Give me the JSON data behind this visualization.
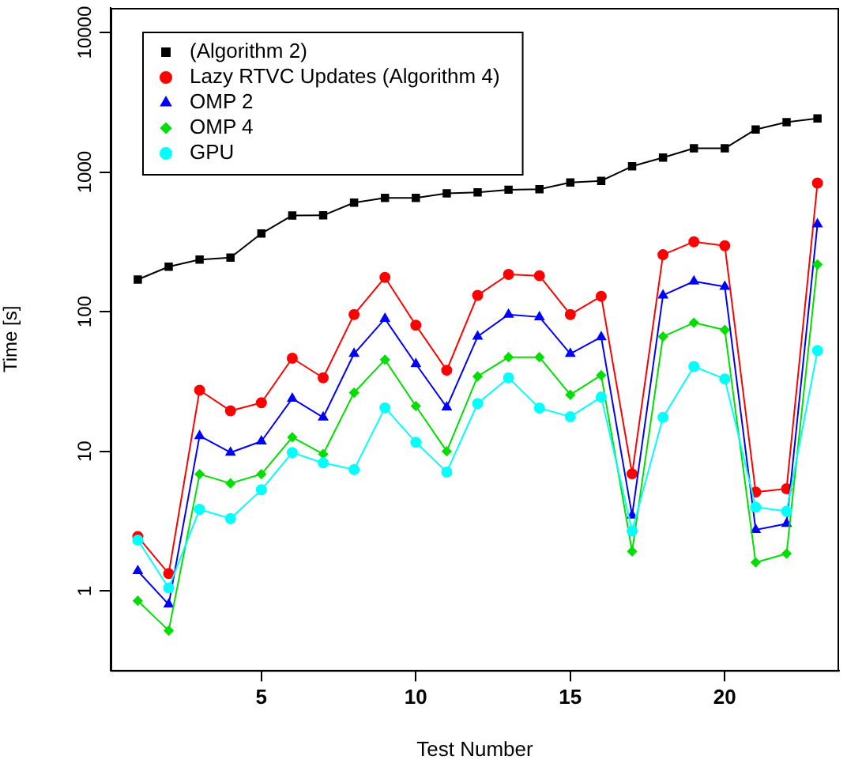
{
  "chart_data": {
    "type": "line",
    "xlabel": "Test Number",
    "ylabel": "Time [s]",
    "log": "y",
    "grid": false,
    "legend": "top left",
    "x": [
      1,
      2,
      3,
      4,
      5,
      6,
      7,
      8,
      9,
      10,
      11,
      12,
      13,
      14,
      15,
      16,
      17,
      18,
      19,
      20,
      21,
      22,
      23
    ],
    "xlim": [
      0.12,
      23.7
    ],
    "xticks": [
      5,
      10,
      15,
      20
    ],
    "ylim": [
      0.27,
      15000
    ],
    "yticks": [
      1,
      10,
      100,
      1000,
      10000
    ],
    "series": [
      {
        "name": "(Algorithm 2)",
        "color": "#000000",
        "marker": "square",
        "values": [
          170,
          210,
          236,
          244,
          363,
          489,
          490,
          604,
          653,
          653,
          705,
          716,
          748,
          755,
          843,
          865,
          1100,
          1270,
          1480,
          1480,
          2020,
          2280,
          2420
        ]
      },
      {
        "name": "Lazy RTVC Updates (Algorithm 4)",
        "color": "#ff0000",
        "marker": "circle",
        "values": [
          2.45,
          1.33,
          27.4,
          19.5,
          22.3,
          46.4,
          33.6,
          95.5,
          176,
          80,
          38.1,
          131,
          185,
          181,
          95.5,
          129,
          6.9,
          256,
          317,
          297,
          5.1,
          5.4,
          834
        ]
      },
      {
        "name": "OMP 2",
        "color": "#0000ff",
        "marker": "triangle",
        "values": [
          1.39,
          0.8,
          12.9,
          9.8,
          11.8,
          23.9,
          17.5,
          50,
          89,
          42.2,
          20.7,
          66.4,
          95.5,
          91.6,
          50,
          65.8,
          3.47,
          131,
          165,
          151,
          2.74,
          3.03,
          424
        ]
      },
      {
        "name": "OMP 4",
        "color": "#00e000",
        "marker": "diamond",
        "values": [
          0.85,
          0.52,
          6.86,
          5.9,
          6.86,
          12.6,
          9.55,
          26.3,
          45.3,
          21.1,
          10,
          34.4,
          47.2,
          47.2,
          25.4,
          35.1,
          1.92,
          66.4,
          83.4,
          74,
          1.6,
          1.85,
          218
        ]
      },
      {
        "name": "GPU",
        "color": "#00ffff",
        "marker": "circle",
        "values": [
          2.31,
          1.05,
          3.84,
          3.3,
          5.3,
          9.8,
          8.26,
          7.4,
          20.5,
          11.6,
          7.1,
          22,
          33.6,
          20.4,
          17.7,
          24.5,
          2.69,
          17.5,
          40.5,
          33,
          3.98,
          3.72,
          52.7
        ]
      }
    ]
  }
}
